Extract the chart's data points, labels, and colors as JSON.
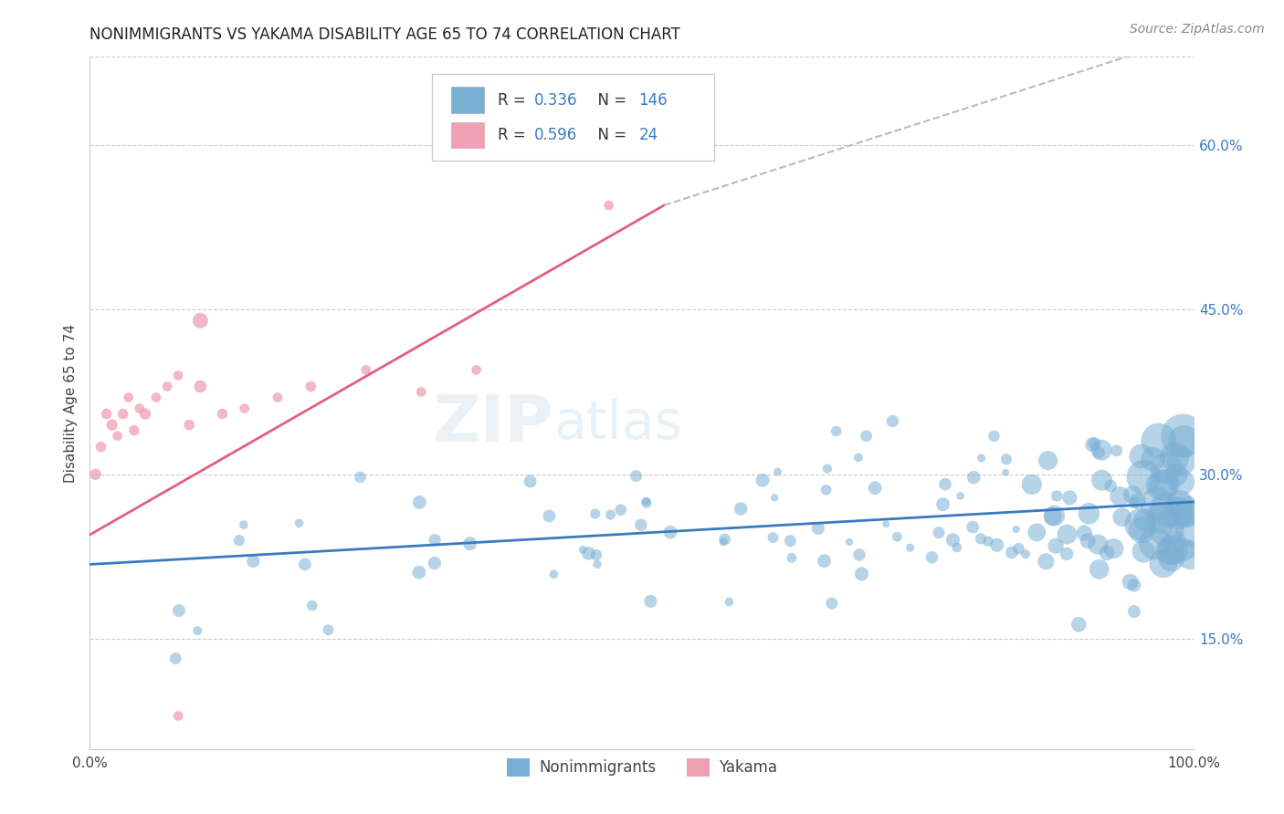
{
  "title": "NONIMMIGRANTS VS YAKAMA DISABILITY AGE 65 TO 74 CORRELATION CHART",
  "source": "Source: ZipAtlas.com",
  "ylabel": "Disability Age 65 to 74",
  "xlim": [
    0.0,
    1.0
  ],
  "ylim": [
    0.05,
    0.68
  ],
  "yticks": [
    0.15,
    0.3,
    0.45,
    0.6
  ],
  "ytick_labels": [
    "15.0%",
    "30.0%",
    "45.0%",
    "60.0%"
  ],
  "grid_color": "#cccccc",
  "background_color": "#ffffff",
  "blue_color": "#7aafd4",
  "blue_line_color": "#3a7bbf",
  "pink_color": "#f0a0b4",
  "pink_line_color": "#e06080",
  "dashed_line_color": "#bbbbbb",
  "legend_R1": "0.336",
  "legend_N1": "146",
  "legend_R2": "0.596",
  "legend_N2": "24",
  "watermark_zip": "ZIP",
  "watermark_atlas": "atlas",
  "nonimmigrant_label": "Nonimmigrants",
  "yakama_label": "Yakama",
  "blue_trend": {
    "x_start": 0.0,
    "x_end": 1.0,
    "y_start": 0.218,
    "y_end": 0.275
  },
  "pink_trend": {
    "x_start": 0.0,
    "x_end": 0.52,
    "y_start": 0.245,
    "y_end": 0.545
  },
  "dashed_trend": {
    "x_start": 0.52,
    "x_end": 1.0,
    "y_start": 0.545,
    "y_end": 0.7
  }
}
